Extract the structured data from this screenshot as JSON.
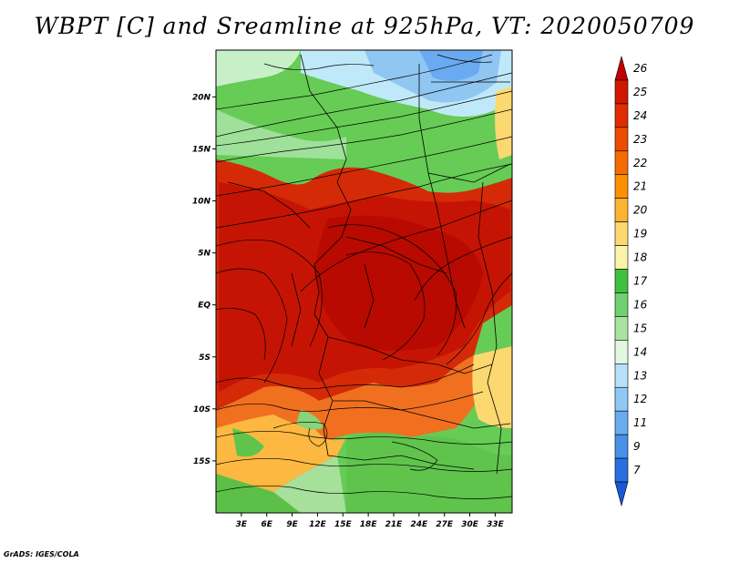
{
  "title": "WBPT [C] and Sreamline at 925hPa, VT: 2020050709",
  "credit": "GrADS: IGES/COLA",
  "map": {
    "lon_range": [
      0,
      35
    ],
    "lat_range": [
      -20,
      24.5
    ],
    "lon_ticks": [
      {
        "value": 3,
        "label": "3E"
      },
      {
        "value": 6,
        "label": "6E"
      },
      {
        "value": 9,
        "label": "9E"
      },
      {
        "value": 12,
        "label": "12E"
      },
      {
        "value": 15,
        "label": "15E"
      },
      {
        "value": 18,
        "label": "18E"
      },
      {
        "value": 21,
        "label": "21E"
      },
      {
        "value": 24,
        "label": "24E"
      },
      {
        "value": 27,
        "label": "27E"
      },
      {
        "value": 30,
        "label": "30E"
      },
      {
        "value": 33,
        "label": "33E"
      }
    ],
    "lat_ticks": [
      {
        "value": 20,
        "label": "20N"
      },
      {
        "value": 15,
        "label": "15N"
      },
      {
        "value": 10,
        "label": "10N"
      },
      {
        "value": 5,
        "label": "5N"
      },
      {
        "value": 0,
        "label": "EQ"
      },
      {
        "value": -5,
        "label": "5S"
      },
      {
        "value": -10,
        "label": "10S"
      },
      {
        "value": -15,
        "label": "15S"
      }
    ]
  },
  "colorbar": {
    "levels": [
      "26",
      "25",
      "24",
      "23",
      "22",
      "21",
      "20",
      "19",
      "18",
      "17",
      "16",
      "15",
      "14",
      "13",
      "12",
      "11",
      "9",
      "7"
    ],
    "colors": [
      "#c00000",
      "#d01800",
      "#e02c00",
      "#ec4c00",
      "#f46c00",
      "#fc9000",
      "#fcb430",
      "#fcd870",
      "#fcf4a8",
      "#40c040",
      "#70d070",
      "#a8e4a0",
      "#e0f8e0",
      "#b8e0f8",
      "#90c8f4",
      "#68acf0",
      "#4890e8",
      "#2870e0",
      "#1858d8"
    ]
  }
}
